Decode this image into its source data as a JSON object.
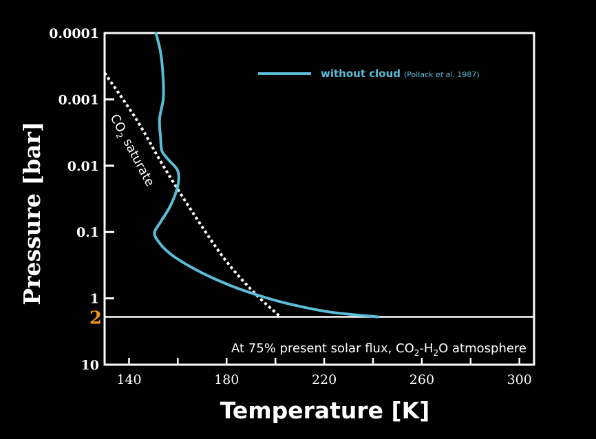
{
  "chart_data": {
    "type": "line",
    "xlabel": "Temperature [K]",
    "ylabel": "Pressure [bar]",
    "xlim": [
      130,
      306
    ],
    "ylim": [
      10,
      0.0001
    ],
    "y_scale": "log",
    "x_ticks": [
      "140",
      "180",
      "220",
      "260",
      "300"
    ],
    "x_tick_values": [
      140,
      180,
      220,
      260,
      300
    ],
    "y_ticks": [
      "0.0001",
      "0.001",
      "0.01",
      "0.1",
      "1",
      "10"
    ],
    "y_tick_values": [
      0.0001,
      0.001,
      0.01,
      0.1,
      1,
      10
    ],
    "grid": false,
    "legend_position": "top-right",
    "series": [
      {
        "name": "without cloud",
        "ref_prefix": "(Pollack ",
        "ref_italic": "et al.",
        "ref_suffix": " 1987)",
        "color": "#5bbcd6",
        "style": "solid",
        "x": [
          151,
          153,
          154,
          154,
          152.5,
          153,
          153.5,
          156,
          160,
          160,
          157,
          153,
          150.5,
          151.5,
          156,
          163,
          172,
          182,
          193,
          205,
          222,
          242
        ],
        "y": [
          0.0001,
          0.0002,
          0.0005,
          0.001,
          0.002,
          0.004,
          0.006,
          0.008,
          0.012,
          0.02,
          0.04,
          0.07,
          0.1,
          0.13,
          0.2,
          0.3,
          0.45,
          0.65,
          0.9,
          1.2,
          1.6,
          1.9
        ]
      },
      {
        "color": "#ffffff",
        "style": "dotted",
        "x": [
          130,
          143,
          154,
          166,
          179,
          191,
          202
        ],
        "y": [
          0.0004,
          0.002,
          0.01,
          0.05,
          0.25,
          0.8,
          1.9
        ]
      }
    ],
    "annotations": {
      "co2_main": "CO",
      "co2_sub": "2",
      "co2_rest": " saturate",
      "surface_pressure_label": "2",
      "surface_pressure_color": "#f0921e",
      "surface_pressure_value": 1.9,
      "condition_a": "At 75% present solar flux, CO",
      "condition_sub1": "2",
      "condition_b": "-H",
      "condition_sub2": "2",
      "condition_c": "O atmosphere"
    }
  }
}
